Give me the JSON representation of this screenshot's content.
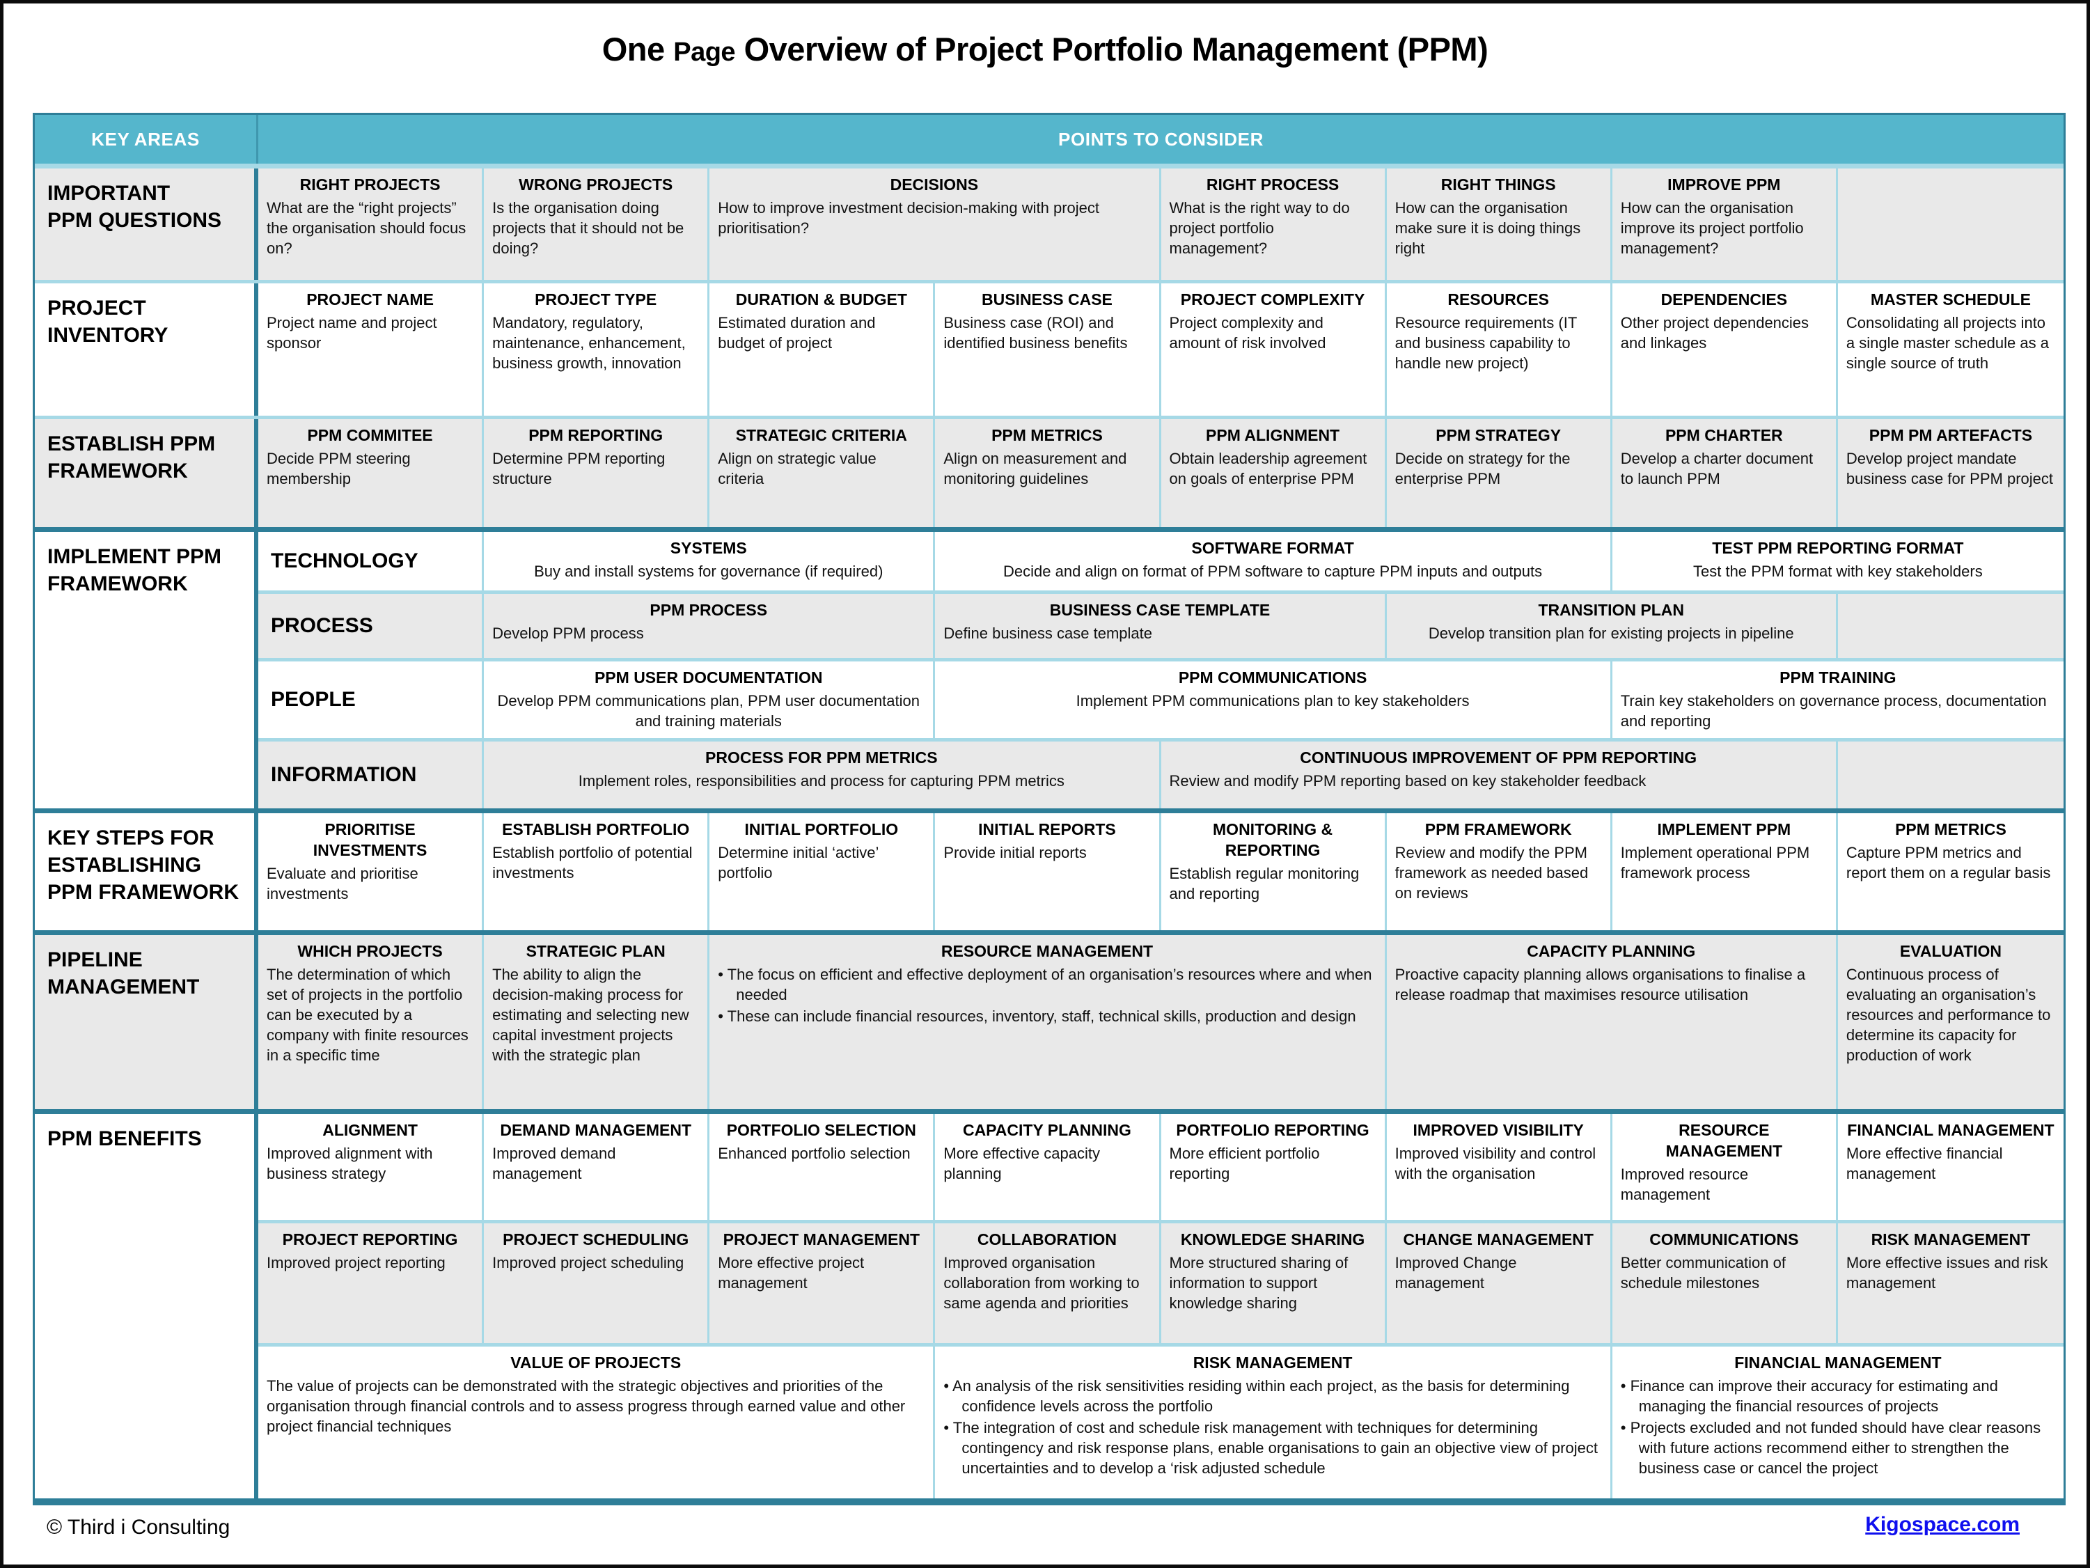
{
  "title": {
    "part1": "One ",
    "part2": "Page",
    "part3": " Overview of Project Portfolio Management (PPM)"
  },
  "header": {
    "key_areas": "KEY AREAS",
    "points": "POINTS TO CONSIDER"
  },
  "colors": {
    "header_bg": "#55b6cc",
    "border_dark": "#2e7e98",
    "border_light": "#a6d9e6",
    "alt_row_bg": "#e9e9e9",
    "link_blue": "#0f0fee"
  },
  "rows": {
    "questions": {
      "area": "IMPORTANT\nPPM  QUESTIONS",
      "cells": [
        {
          "title": "RIGHT PROJECTS",
          "body": "What are the “right projects” the organisation should  focus on?"
        },
        {
          "title": "WRONG PROJECTS",
          "body": "Is the organisation doing projects that it should not be doing?"
        },
        {
          "title": "DECISIONS",
          "body": "How to improve investment decision-making with project prioritisation?"
        },
        {
          "title": "RIGHT PROCESS",
          "body": "What is the right way to do project portfolio management?"
        },
        {
          "title": "RIGHT THINGS",
          "body": "How can the organisation make sure it is doing things right"
        },
        {
          "title": "IMPROVE PPM",
          "body": "How can the organisation improve its project portfolio management?"
        }
      ]
    },
    "inventory": {
      "area": "PROJECT\nINVENTORY",
      "cells": [
        {
          "title": "PROJECT NAME",
          "body": "Project name and project sponsor"
        },
        {
          "title": "PROJECT TYPE",
          "body": "Mandatory, regulatory, maintenance, enhancement, business growth, innovation"
        },
        {
          "title": "DURATION & BUDGET",
          "body": "Estimated duration and budget of project"
        },
        {
          "title": "BUSINESS CASE",
          "body": "Business case (ROI) and identified business benefits"
        },
        {
          "title": "PROJECT COMPLEXITY",
          "body": "Project complexity and amount of risk involved"
        },
        {
          "title": "RESOURCES",
          "body": "Resource requirements (IT and business capability to handle new project)"
        },
        {
          "title": "DEPENDENCIES",
          "body": "Other project dependencies and linkages"
        },
        {
          "title": "MASTER SCHEDULE",
          "body": "Consolidating all projects into a single master schedule as a single source of truth"
        }
      ]
    },
    "establish": {
      "area": "ESTABLISH PPM\nFRAMEWORK",
      "cells": [
        {
          "title": "PPM COMMITEE",
          "body": "Decide PPM steering membership"
        },
        {
          "title": "PPM REPORTING",
          "body": "Determine PPM reporting structure"
        },
        {
          "title": "STRATEGIC CRITERIA",
          "body": "Align on strategic value criteria"
        },
        {
          "title": "PPM METRICS",
          "body": "Align on  measurement and monitoring guidelines"
        },
        {
          "title": "PPM ALIGNMENT",
          "body": "Obtain leadership agreement on goals of enterprise PPM"
        },
        {
          "title": "PPM STRATEGY",
          "body": "Decide on strategy for the enterprise PPM"
        },
        {
          "title": "PPM CHARTER",
          "body": "Develop a charter document to launch PPM"
        },
        {
          "title": "PPM PM ARTEFACTS",
          "body": "Develop project mandate business case for PPM project"
        }
      ]
    },
    "implement": {
      "area": "IMPLEMENT PPM\nFRAMEWORK",
      "subrows": [
        {
          "label": "TECHNOLOGY",
          "cells": [
            {
              "title": "SYSTEMS",
              "body": "Buy and install systems for governance (if required)"
            },
            {
              "title": "SOFTWARE FORMAT",
              "body": "Decide and align on format of PPM software to capture PPM inputs and outputs"
            },
            {
              "title": "TEST PPM REPORTING FORMAT",
              "body": "Test the PPM format with key stakeholders"
            }
          ]
        },
        {
          "label": "PROCESS",
          "cells": [
            {
              "title": "PPM PROCESS",
              "body": "Develop PPM process"
            },
            {
              "title": "BUSINESS CASE TEMPLATE",
              "body": "Define business case template"
            },
            {
              "title": "TRANSITION PLAN",
              "body": "Develop transition plan for existing projects in pipeline"
            }
          ]
        },
        {
          "label": "PEOPLE",
          "cells": [
            {
              "title": "PPM USER DOCUMENTATION",
              "body": "Develop PPM communications plan, PPM user documentation and training materials"
            },
            {
              "title": "PPM COMMUNICATIONS",
              "body": "Implement PPM communications plan to key stakeholders"
            },
            {
              "title": "PPM TRAINING",
              "body": "Train key stakeholders on governance process, documentation and reporting"
            }
          ]
        },
        {
          "label": "INFORMATION",
          "cells": [
            {
              "title": "PROCESS FOR PPM METRICS",
              "body": "Implement roles, responsibilities and process for capturing PPM metrics"
            },
            {
              "title": "CONTINUOUS IMPROVEMENT OF PPM REPORTING",
              "body": "Review and modify PPM reporting based on key stakeholder feedback"
            }
          ]
        }
      ]
    },
    "keysteps": {
      "area": "KEY STEPS FOR\nESTABLISHING\nPPM FRAMEWORK",
      "cells": [
        {
          "title": "PRIORITISE INVESTMENTS",
          "body": "Evaluate and prioritise investments"
        },
        {
          "title": "ESTABLISH PORTFOLIO",
          "body": "Establish portfolio of potential investments"
        },
        {
          "title": "INITIAL PORTFOLIO",
          "body": "Determine initial ‘active’ portfolio"
        },
        {
          "title": "INITIAL REPORTS",
          "body": "Provide initial reports"
        },
        {
          "title": "MONITORING & REPORTING",
          "body": "Establish regular monitoring and reporting"
        },
        {
          "title": "PPM FRAMEWORK",
          "body": "Review and modify the PPM framework as needed based on reviews"
        },
        {
          "title": "IMPLEMENT PPM",
          "body": "Implement operational PPM framework process"
        },
        {
          "title": "PPM METRICS",
          "body": "Capture PPM metrics and report them on a regular basis"
        }
      ]
    },
    "pipeline": {
      "area": "PIPELINE\nMANAGEMENT",
      "cells": [
        {
          "title": "WHICH PROJECTS",
          "body": "The determination of which set of projects in the portfolio can be executed by a company with finite resources in a specific time"
        },
        {
          "title": "STRATEGIC PLAN",
          "body": "The ability to align the decision-making process for estimating and selecting new capital investment projects with the strategic plan"
        },
        {
          "title": "RESOURCE MANAGEMENT",
          "bullets": [
            "The focus on efficient and effective deployment of an organisation’s resources where and when needed",
            "These can include financial resources, inventory, staff, technical skills, production and design"
          ]
        },
        {
          "title": "CAPACITY PLANNING",
          "body": "Proactive capacity planning allows organisations to finalise a release roadmap that maximises resource utilisation"
        },
        {
          "title": "EVALUATION",
          "body": "Continuous process of evaluating an organisation’s resources and performance to determine its capacity for production of work"
        }
      ]
    },
    "benefits": {
      "area": "PPM BENEFITS",
      "subrow_a": [
        {
          "title": "ALIGNMENT",
          "body": "Improved alignment with business strategy"
        },
        {
          "title": "DEMAND MANAGEMENT",
          "body": "Improved demand management"
        },
        {
          "title": "PORTFOLIO SELECTION",
          "body": "Enhanced portfolio selection"
        },
        {
          "title": "CAPACITY PLANNING",
          "body": "More effective capacity planning"
        },
        {
          "title": "PORTFOLIO REPORTING",
          "body": "More efficient portfolio reporting"
        },
        {
          "title": "IMPROVED VISIBILITY",
          "body": "Improved visibility and control with the organisation"
        },
        {
          "title": "RESOURCE MANAGEMENT",
          "body": "Improved resource management"
        },
        {
          "title": "FINANCIAL MANAGEMENT",
          "body": "More effective financial management"
        }
      ],
      "subrow_b": [
        {
          "title": "PROJECT REPORTING",
          "body": "Improved project reporting"
        },
        {
          "title": "PROJECT SCHEDULING",
          "body": "Improved project scheduling"
        },
        {
          "title": "PROJECT MANAGEMENT",
          "body": "More effective project management"
        },
        {
          "title": "COLLABORATION",
          "body": "Improved organisation collaboration from working to same agenda and priorities"
        },
        {
          "title": "KNOWLEDGE SHARING",
          "body": "More structured sharing of information to support knowledge sharing"
        },
        {
          "title": "CHANGE MANAGEMENT",
          "body": "Improved Change management"
        },
        {
          "title": "COMMUNICATIONS",
          "body": "Better communication of schedule milestones"
        },
        {
          "title": "RISK MANAGEMENT",
          "body": "More effective issues and risk management"
        }
      ],
      "subrow_c": [
        {
          "title": "VALUE OF PROJECTS",
          "body": "The value of projects can be demonstrated with the strategic objectives and priorities of the organisation through financial controls and to assess progress through earned value and other project financial techniques"
        },
        {
          "title": "RISK MANAGEMENT",
          "bullets": [
            "An analysis of the risk sensitivities residing within each project, as the basis for determining confidence levels across the portfolio",
            "The integration of cost and schedule risk management with techniques for determining contingency and risk response plans, enable organisations to gain an objective view of project uncertainties and to develop a ‘risk adjusted schedule"
          ]
        },
        {
          "title": "FINANCIAL MANAGEMENT",
          "bullets": [
            "Finance can improve their accuracy for estimating and managing the financial resources of projects",
            "Projects excluded and not funded should have clear reasons with future actions recommend either to strengthen the business case or cancel the project"
          ]
        }
      ]
    }
  },
  "footer": {
    "copyright": "© Third i Consulting",
    "link": "Kigospace.com"
  }
}
